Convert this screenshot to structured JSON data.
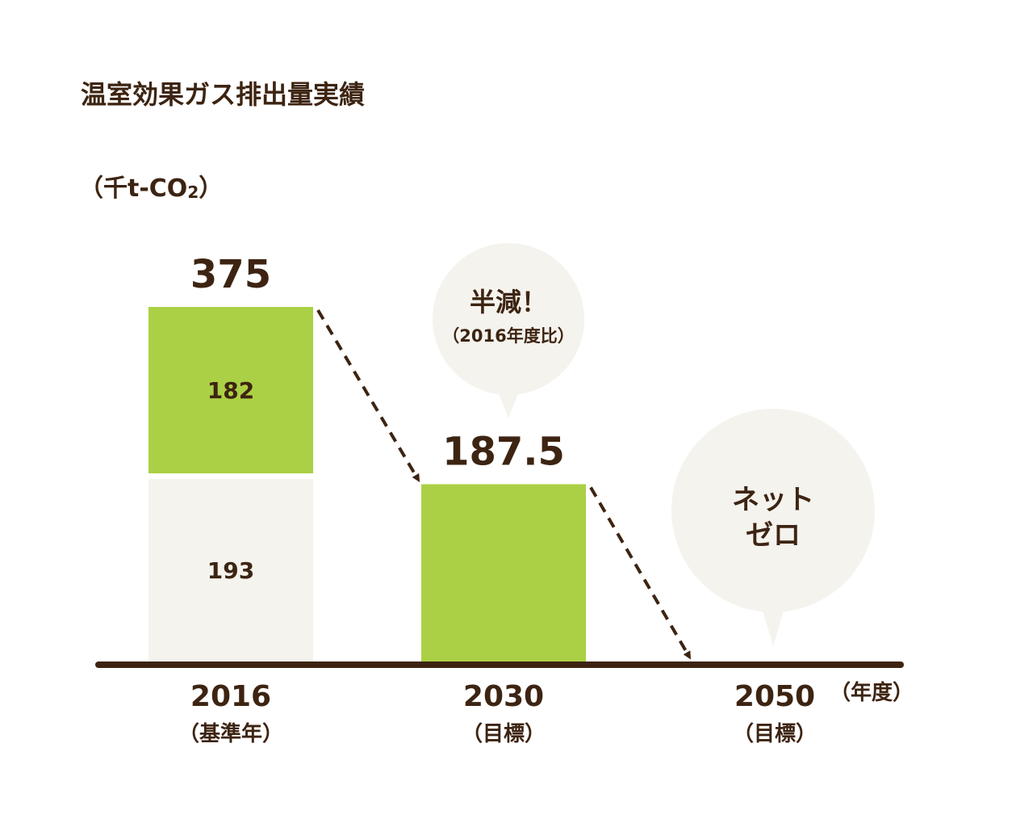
{
  "colors": {
    "green": "#abd045",
    "beige": "#f5f3ee",
    "brown": "#3d2412",
    "bubble": "#f5f3ee"
  },
  "header": {
    "title": "温室効果ガス排出量実績",
    "unit_main": "（千t-CO",
    "unit_sub": "2",
    "unit_close": "）"
  },
  "chart_data": {
    "type": "bar",
    "categories": [
      "2016",
      "2030",
      "2050"
    ],
    "category_sublabels": [
      "（基準年）",
      "（目標）",
      "（目標）"
    ],
    "x_unit": "（年度）",
    "ylabel": "（千t-CO2）",
    "ylim": [
      0,
      375
    ],
    "series": [
      {
        "values": [
          193,
          0,
          0
        ],
        "color": "#f5f3ee",
        "segment_labels": [
          "193",
          "",
          ""
        ]
      },
      {
        "values": [
          182,
          187.5,
          0
        ],
        "color": "#abd045",
        "segment_labels": [
          "182",
          "",
          ""
        ]
      }
    ],
    "totals": [
      "375",
      "187.5",
      ""
    ],
    "annotations": [
      {
        "category": "2030",
        "lines": [
          "半減！",
          "（2016年度比）"
        ]
      },
      {
        "category": "2050",
        "lines": [
          "ネット",
          "ゼロ"
        ]
      }
    ]
  }
}
